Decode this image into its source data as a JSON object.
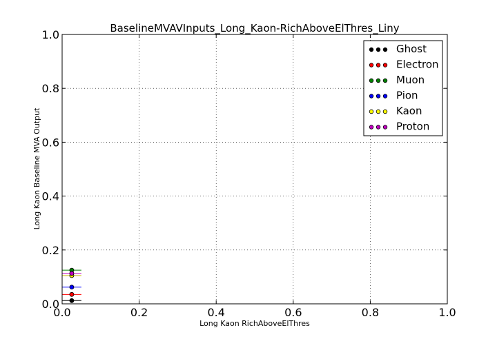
{
  "chart_data": {
    "type": "scatter",
    "title": "BaselineMVAVInputs_Long_Kaon-RichAboveElThres_Liny",
    "xlabel": "Long Kaon RichAboveElThres",
    "ylabel": "Long Kaon Baseline MVA Output",
    "xlim": [
      0.0,
      1.0
    ],
    "ylim": [
      0.0,
      1.0
    ],
    "grid": true,
    "legend_position": "top-right",
    "x_ticks": [
      "0.0",
      "0.2",
      "0.4",
      "0.6",
      "0.8",
      "1.0"
    ],
    "y_ticks": [
      "0.0",
      "0.2",
      "0.4",
      "0.6",
      "0.8",
      "1.0"
    ],
    "series": [
      {
        "name": "Ghost",
        "color": "#000000",
        "x": [
          0.025
        ],
        "xerr": [
          0.025
        ],
        "y": [
          0.012
        ]
      },
      {
        "name": "Electron",
        "color": "#ff0000",
        "x": [
          0.025
        ],
        "xerr": [
          0.025
        ],
        "y": [
          0.035
        ]
      },
      {
        "name": "Muon",
        "color": "#008000",
        "x": [
          0.025
        ],
        "xerr": [
          0.025
        ],
        "y": [
          0.125
        ]
      },
      {
        "name": "Pion",
        "color": "#0000ff",
        "x": [
          0.025
        ],
        "xerr": [
          0.025
        ],
        "y": [
          0.062
        ]
      },
      {
        "name": "Kaon",
        "color": "#ffff00",
        "x": [
          0.025
        ],
        "xerr": [
          0.025
        ],
        "y": [
          0.105
        ]
      },
      {
        "name": "Proton",
        "color": "#bf00bf",
        "x": [
          0.025
        ],
        "xerr": [
          0.025
        ],
        "y": [
          0.113
        ]
      }
    ]
  }
}
